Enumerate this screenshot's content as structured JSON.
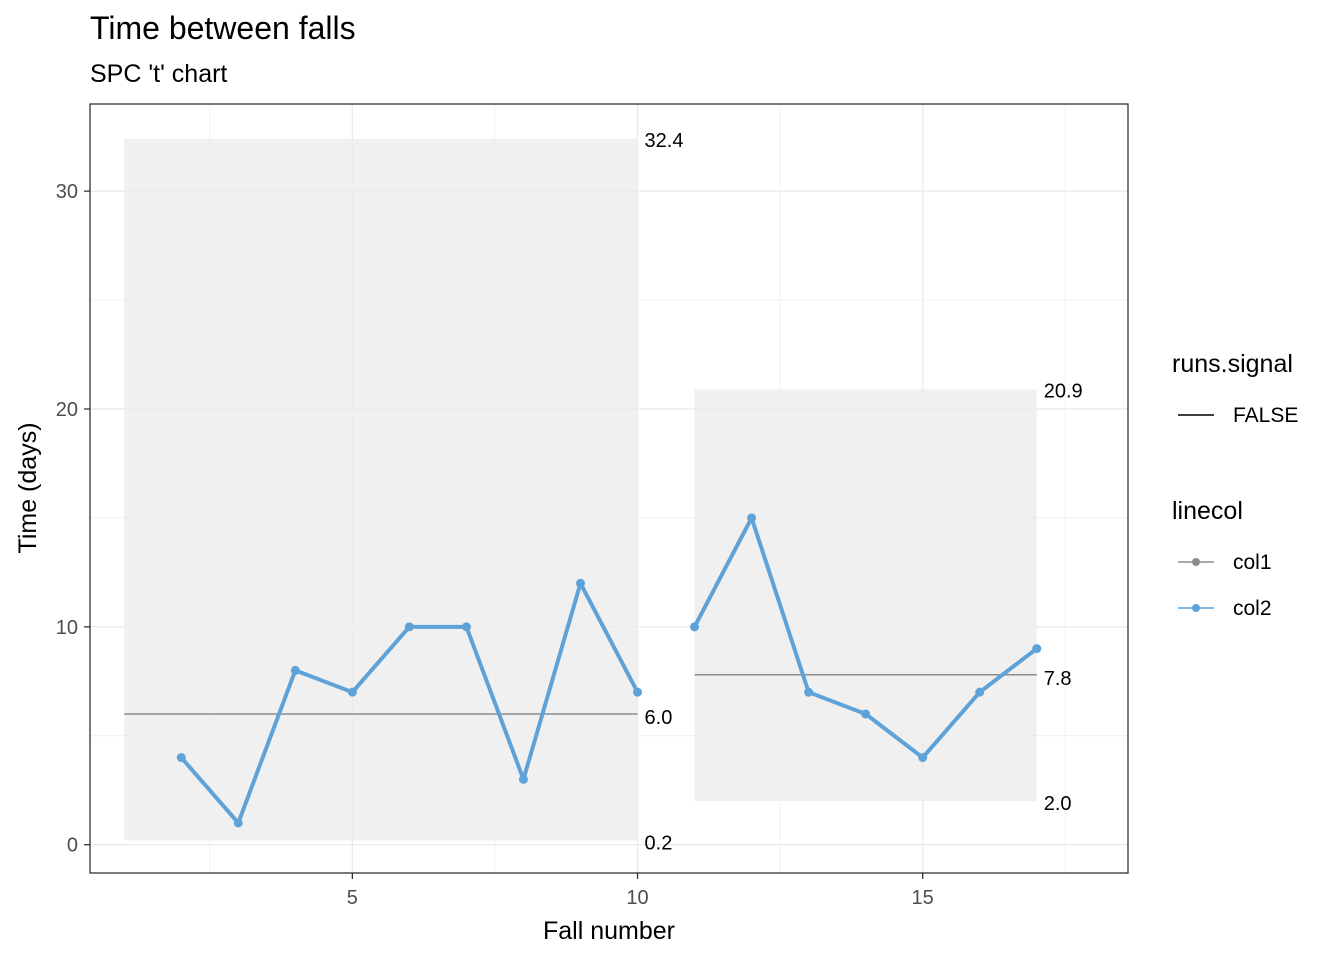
{
  "chart_data": {
    "type": "line",
    "title": "Time between falls",
    "subtitle": "SPC 't' chart",
    "xlabel": "Fall number",
    "ylabel": "Time (days)",
    "xlim": [
      0.4,
      18.6
    ],
    "ylim": [
      -1.3,
      34.0
    ],
    "x_ticks": [
      5,
      10,
      15
    ],
    "y_ticks": [
      0,
      10,
      20,
      30
    ],
    "grid": true,
    "legend_position": "right",
    "limit_bands": [
      {
        "x_start": 1,
        "x_end": 10,
        "lower": 0.2,
        "upper": 32.4,
        "center": 6.0,
        "lower_label": "0.2",
        "upper_label": "32.4",
        "center_label": "6.0"
      },
      {
        "x_start": 11,
        "x_end": 17,
        "lower": 2.0,
        "upper": 20.9,
        "center": 7.8,
        "lower_label": "2.0",
        "upper_label": "20.9",
        "center_label": "7.8"
      }
    ],
    "series": [
      {
        "name": "col2",
        "segment": 1,
        "x": [
          2,
          3,
          4,
          5,
          6,
          7,
          8,
          9,
          10
        ],
        "values": [
          4,
          1,
          8,
          7,
          10,
          10,
          3,
          12,
          7
        ]
      },
      {
        "name": "col2",
        "segment": 2,
        "x": [
          11,
          12,
          13,
          14,
          15,
          16,
          17
        ],
        "values": [
          10,
          15,
          7,
          6,
          4,
          7,
          9
        ]
      }
    ],
    "legend": {
      "runs_title": "runs.signal",
      "runs_items": [
        {
          "label": "FALSE",
          "color": "#000000"
        }
      ],
      "linecol_title": "linecol",
      "linecol_items": [
        {
          "label": "col1",
          "color": "#8C8C8C"
        },
        {
          "label": "col2",
          "color": "#5FA2D8"
        }
      ]
    },
    "colors": {
      "series": "#5FA2D8",
      "center_line": "#8C8C8C",
      "band": "#F0F0F0",
      "grid": "#EBEBEB"
    }
  }
}
